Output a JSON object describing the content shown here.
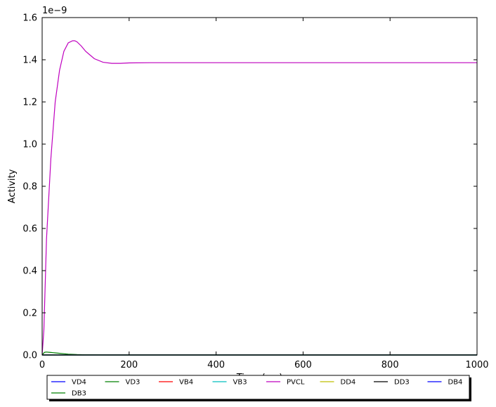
{
  "chart_data": {
    "type": "line",
    "xlabel": "Time (ms)",
    "ylabel": "Activity",
    "y_scale_label": "1e−9",
    "xlim": [
      0,
      1000
    ],
    "ylim": [
      0,
      1.6
    ],
    "y_multiplier": 1e-09,
    "x_ticks": [
      "0",
      "200",
      "400",
      "600",
      "800",
      "1000"
    ],
    "y_ticks": [
      "0.0",
      "0.2",
      "0.4",
      "0.6",
      "0.8",
      "1.0",
      "1.2",
      "1.4",
      "1.6"
    ],
    "grid": false,
    "legend_location": "below plot, 8 columns",
    "series": [
      {
        "name": "VD4",
        "color": "#0000ff",
        "x": [
          0,
          1000
        ],
        "y": [
          0,
          0
        ]
      },
      {
        "name": "VD3",
        "color": "#008000",
        "x": [
          0,
          3,
          6,
          10,
          15,
          20,
          25,
          30,
          40,
          50,
          60,
          80,
          100,
          150,
          1000
        ],
        "y": [
          0,
          0.008,
          0.013,
          0.014,
          0.013,
          0.012,
          0.011,
          0.01,
          0.008,
          0.006,
          0.004,
          0.002,
          0.001,
          0,
          0
        ]
      },
      {
        "name": "VB4",
        "color": "#ff0000",
        "x": [
          0,
          1000
        ],
        "y": [
          0,
          0
        ]
      },
      {
        "name": "VB3",
        "color": "#00bfbf",
        "x": [
          0,
          1000
        ],
        "y": [
          0,
          0
        ]
      },
      {
        "name": "PVCL",
        "color": "#bf00bf",
        "x": [
          0,
          4,
          10,
          20,
          30,
          40,
          50,
          60,
          70,
          75,
          80,
          90,
          100,
          120,
          140,
          160,
          180,
          200,
          250,
          300,
          400,
          600,
          800,
          1000
        ],
        "y": [
          0,
          0.12,
          0.55,
          0.93,
          1.2,
          1.35,
          1.44,
          1.48,
          1.49,
          1.49,
          1.485,
          1.465,
          1.44,
          1.405,
          1.388,
          1.383,
          1.383,
          1.385,
          1.386,
          1.386,
          1.386,
          1.386,
          1.386,
          1.386
        ]
      },
      {
        "name": "DD4",
        "color": "#bfbf00",
        "x": [
          0,
          1000
        ],
        "y": [
          0,
          0
        ]
      },
      {
        "name": "DD3",
        "color": "#000000",
        "x": [
          0,
          1000
        ],
        "y": [
          0,
          0
        ]
      },
      {
        "name": "DB4",
        "color": "#0000ff",
        "x": [
          0,
          1000
        ],
        "y": [
          0,
          0
        ]
      },
      {
        "name": "DB3",
        "color": "#008000",
        "x": [
          0,
          1000
        ],
        "y": [
          0,
          0
        ]
      }
    ]
  }
}
